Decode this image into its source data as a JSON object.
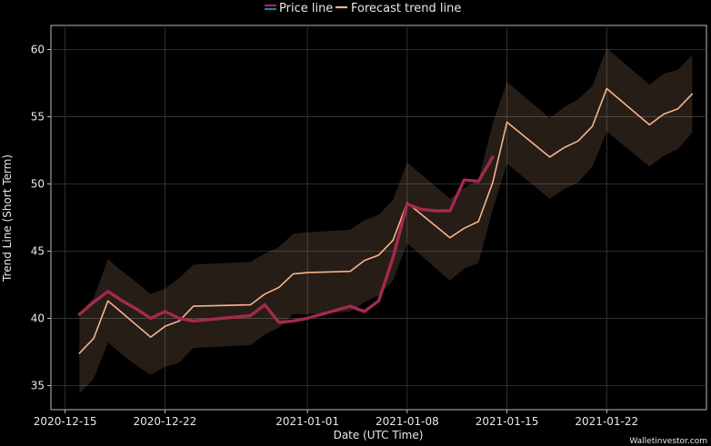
{
  "chart_data": {
    "type": "line",
    "title": "",
    "xlabel": "Date (UTC Time)",
    "ylabel": "Trend Line (Short Term)",
    "xlim": [
      "2020-12-14",
      "2021-01-29"
    ],
    "ylim": [
      33.2,
      61.8
    ],
    "x_ticks": [
      "2020-12-15",
      "2020-12-22",
      "2021-01-01",
      "2021-01-08",
      "2021-01-15",
      "2021-01-22"
    ],
    "y_ticks": [
      35,
      40,
      45,
      50,
      55,
      60
    ],
    "grid": true,
    "legend_position": "top-center",
    "series": [
      {
        "name": "Price line",
        "color": "#a32a4e",
        "x": [
          "2020-12-16",
          "2020-12-17",
          "2020-12-18",
          "2020-12-19",
          "2020-12-20",
          "2020-12-21",
          "2020-12-22",
          "2020-12-23",
          "2020-12-24",
          "2020-12-25",
          "2020-12-26",
          "2020-12-27",
          "2020-12-28",
          "2020-12-29",
          "2020-12-30",
          "2020-12-31",
          "2021-01-01",
          "2021-01-02",
          "2021-01-03",
          "2021-01-04",
          "2021-01-05",
          "2021-01-06",
          "2021-01-07",
          "2021-01-08",
          "2021-01-09",
          "2021-01-10",
          "2021-01-11",
          "2021-01-12",
          "2021-01-13",
          "2021-01-14"
        ],
        "values": [
          40.3,
          41.2,
          42.0,
          41.3,
          40.7,
          40.0,
          40.5,
          40.0,
          39.8,
          39.9,
          40.0,
          40.1,
          40.2,
          41.0,
          39.7,
          39.8,
          40.0,
          40.3,
          40.6,
          40.9,
          40.5,
          41.3,
          44.5,
          48.5,
          48.1,
          48.0,
          48.0,
          50.3,
          50.2,
          52.0
        ]
      },
      {
        "name": "Forecast trend line",
        "color": "#f5b58c",
        "x": [
          "2020-12-16",
          "2020-12-17",
          "2020-12-18",
          "2020-12-19",
          "2020-12-20",
          "2020-12-21",
          "2020-12-22",
          "2020-12-23",
          "2020-12-24",
          "2020-12-28",
          "2020-12-29",
          "2020-12-30",
          "2020-12-31",
          "2021-01-01",
          "2021-01-04",
          "2021-01-05",
          "2021-01-06",
          "2021-01-07",
          "2021-01-08",
          "2021-01-11",
          "2021-01-12",
          "2021-01-13",
          "2021-01-14",
          "2021-01-15",
          "2021-01-18",
          "2021-01-19",
          "2021-01-20",
          "2021-01-21",
          "2021-01-22",
          "2021-01-25",
          "2021-01-26",
          "2021-01-27",
          "2021-01-28"
        ],
        "values": [
          37.4,
          38.5,
          41.3,
          40.4,
          39.5,
          38.6,
          39.4,
          39.8,
          40.9,
          41.0,
          41.8,
          42.3,
          43.3,
          43.4,
          43.5,
          44.3,
          44.7,
          45.8,
          48.6,
          46.0,
          46.7,
          47.2,
          50.1,
          54.6,
          52.0,
          52.7,
          53.2,
          54.3,
          57.1,
          54.4,
          55.2,
          55.6,
          56.7
        ]
      }
    ],
    "confidence_band": {
      "color": "#f5b58c",
      "x": [
        "2020-12-16",
        "2020-12-17",
        "2020-12-18",
        "2020-12-19",
        "2020-12-20",
        "2020-12-21",
        "2020-12-22",
        "2020-12-23",
        "2020-12-24",
        "2020-12-28",
        "2020-12-29",
        "2020-12-30",
        "2020-12-31",
        "2021-01-01",
        "2021-01-04",
        "2021-01-05",
        "2021-01-06",
        "2021-01-07",
        "2021-01-08",
        "2021-01-11",
        "2021-01-12",
        "2021-01-13",
        "2021-01-14",
        "2021-01-15",
        "2021-01-18",
        "2021-01-19",
        "2021-01-20",
        "2021-01-21",
        "2021-01-22",
        "2021-01-25",
        "2021-01-26",
        "2021-01-27",
        "2021-01-28"
      ],
      "upper": [
        40.4,
        41.5,
        44.4,
        43.5,
        42.7,
        41.8,
        42.2,
        43.0,
        44.0,
        44.2,
        44.8,
        45.3,
        46.3,
        46.4,
        46.6,
        47.3,
        47.7,
        48.8,
        51.6,
        48.9,
        49.7,
        50.3,
        54.5,
        57.6,
        54.9,
        55.7,
        56.3,
        57.3,
        60.1,
        57.4,
        58.2,
        58.5,
        59.6
      ],
      "lower": [
        34.4,
        35.5,
        38.2,
        37.3,
        36.5,
        35.8,
        36.4,
        36.7,
        37.8,
        38.0,
        38.8,
        39.3,
        40.3,
        40.3,
        40.5,
        41.2,
        41.7,
        42.8,
        45.6,
        42.8,
        43.7,
        44.1,
        48.1,
        51.5,
        48.9,
        49.6,
        50.1,
        51.3,
        53.9,
        51.3,
        52.1,
        52.6,
        53.8
      ]
    }
  },
  "watermark": "Walletinvestor.com"
}
